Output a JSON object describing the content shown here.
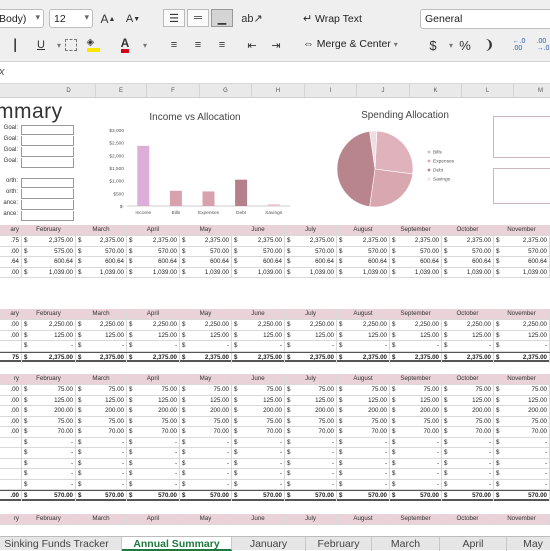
{
  "ribbon": {
    "font_name": "Body)",
    "font_size": "12",
    "wrap_text": "Wrap Text",
    "merge_center": "Merge & Center",
    "number_format": "General",
    "currency_sym": "$",
    "percent_sym": "%",
    "comma_sym": "❩",
    "underline": "U",
    "font_color_letter": "A",
    "grow_font": "A",
    "shrink_font": "A"
  },
  "formula_bar": {
    "fx": "fx",
    "value": ""
  },
  "columns": [
    "D",
    "E",
    "F",
    "G",
    "H",
    "I",
    "J",
    "K",
    "L",
    "M"
  ],
  "summary": {
    "title": "mmary",
    "goal_labels": [
      "Goal:",
      "Goal:",
      "Goal:",
      "Goal:"
    ],
    "worth_labels": [
      "orth:",
      "orth:",
      "ance:",
      "ance:"
    ]
  },
  "income_chart": {
    "title": "Income vs Allocation",
    "chart_data": {
      "type": "bar",
      "title": "Income vs Allocation",
      "categories": [
        "Income",
        "Bills",
        "Expenses",
        "Debt",
        "Savings"
      ],
      "values": [
        2375,
        600.64,
        575,
        1039,
        70
      ],
      "colors": [
        "#dcaed9",
        "#d7a2ad",
        "#d7a2ad",
        "#b3808c",
        "#e8c6cf"
      ],
      "ylim": [
        0,
        3000
      ],
      "yticks": [
        "$3,000",
        "$2,500",
        "$2,000",
        "$1,500",
        "$1,000",
        "$500",
        "$-"
      ]
    }
  },
  "spend_chart": {
    "title": "Spending Allocation",
    "chart_data": {
      "type": "pie",
      "title": "Spending Allocation",
      "categories": [
        "Bills",
        "Expenses",
        "Debt",
        "Savings"
      ],
      "values": [
        600.64,
        575,
        1039,
        70
      ],
      "colors": [
        "#e0b3bc",
        "#d9a7b0",
        "#b8858f",
        "#f0dde2"
      ],
      "legend": "right"
    }
  },
  "months": [
    "February",
    "March",
    "April",
    "May",
    "June",
    "July",
    "August",
    "September",
    "October",
    "November"
  ],
  "first_col": [
    "ary",
    ".75",
    ".00",
    ".64",
    ".00"
  ],
  "table1": {
    "rows": [
      [
        "2,375.00",
        "2,375.00",
        "2,375.00",
        "2,375.00",
        "2,375.00",
        "2,375.00",
        "2,375.00",
        "2,375.00",
        "2,375.00",
        "2,375.00"
      ],
      [
        "575.00",
        "570.00",
        "570.00",
        "570.00",
        "570.00",
        "570.00",
        "570.00",
        "570.00",
        "570.00",
        "570.00"
      ],
      [
        "600.64",
        "600.64",
        "600.64",
        "600.64",
        "600.64",
        "600.64",
        "600.64",
        "600.64",
        "600.64",
        "600.64"
      ],
      [
        "1,039.00",
        "1,039.00",
        "1,039.00",
        "1,039.00",
        "1,039.00",
        "1,039.00",
        "1,039.00",
        "1,039.00",
        "1,039.00",
        "1,039.00"
      ]
    ],
    "first": [
      ".75",
      ".00",
      ".64",
      ".00"
    ]
  },
  "table2": {
    "header_first": "ary",
    "rows": [
      [
        "2,250.00",
        "2,250.00",
        "2,250.00",
        "2,250.00",
        "2,250.00",
        "2,250.00",
        "2,250.00",
        "2,250.00",
        "2,250.00",
        "2,250.00"
      ],
      [
        "125.00",
        "125.00",
        "125.00",
        "125.00",
        "125.00",
        "125.00",
        "125.00",
        "125.00",
        "125.00",
        "125.00"
      ],
      [
        "-",
        "-",
        "-",
        "-",
        "-",
        "-",
        "-",
        "-",
        "-",
        "-"
      ],
      [
        "2,375.00",
        "2,375.00",
        "2,375.00",
        "2,375.00",
        "2,375.00",
        "2,375.00",
        "2,375.00",
        "2,375.00",
        "2,375.00",
        "2,375.00"
      ]
    ],
    "first": [
      ".00",
      ".00",
      "",
      "75"
    ]
  },
  "table3": {
    "header_first": "ry",
    "rows": [
      [
        "75.00",
        "75.00",
        "75.00",
        "75.00",
        "75.00",
        "75.00",
        "75.00",
        "75.00",
        "75.00",
        "75.00"
      ],
      [
        "125.00",
        "125.00",
        "125.00",
        "125.00",
        "125.00",
        "125.00",
        "125.00",
        "125.00",
        "125.00",
        "125.00"
      ],
      [
        "200.00",
        "200.00",
        "200.00",
        "200.00",
        "200.00",
        "200.00",
        "200.00",
        "200.00",
        "200.00",
        "200.00"
      ],
      [
        "75.00",
        "75.00",
        "75.00",
        "75.00",
        "75.00",
        "75.00",
        "75.00",
        "75.00",
        "75.00",
        "75.00"
      ],
      [
        "70.00",
        "70.00",
        "70.00",
        "70.00",
        "70.00",
        "70.00",
        "70.00",
        "70.00",
        "70.00",
        "70.00"
      ],
      [
        "-",
        "-",
        "-",
        "-",
        "-",
        "-",
        "-",
        "-",
        "-",
        "-"
      ],
      [
        "-",
        "-",
        "-",
        "-",
        "-",
        "-",
        "-",
        "-",
        "-",
        "-"
      ],
      [
        "-",
        "-",
        "-",
        "-",
        "-",
        "-",
        "-",
        "-",
        "-",
        "-"
      ],
      [
        "-",
        "-",
        "-",
        "-",
        "-",
        "-",
        "-",
        "-",
        "-",
        "-"
      ],
      [
        "-",
        "-",
        "-",
        "-",
        "-",
        "-",
        "-",
        "-",
        "-",
        "-"
      ],
      [
        "570.00",
        "570.00",
        "570.00",
        "570.00",
        "570.00",
        "570.00",
        "570.00",
        "570.00",
        "570.00",
        "570.00"
      ]
    ],
    "first": [
      ".00",
      ".00",
      ".00",
      ".00",
      ".00",
      "",
      "",
      "",
      "",
      "",
      ".00"
    ]
  },
  "tabs": [
    {
      "label": "Sinking Funds Tracker",
      "active": false
    },
    {
      "label": "Annual Summary",
      "active": true
    },
    {
      "label": "January",
      "active": false
    },
    {
      "label": "February",
      "active": false
    },
    {
      "label": "March",
      "active": false
    },
    {
      "label": "April",
      "active": false
    },
    {
      "label": "May",
      "active": false
    }
  ]
}
